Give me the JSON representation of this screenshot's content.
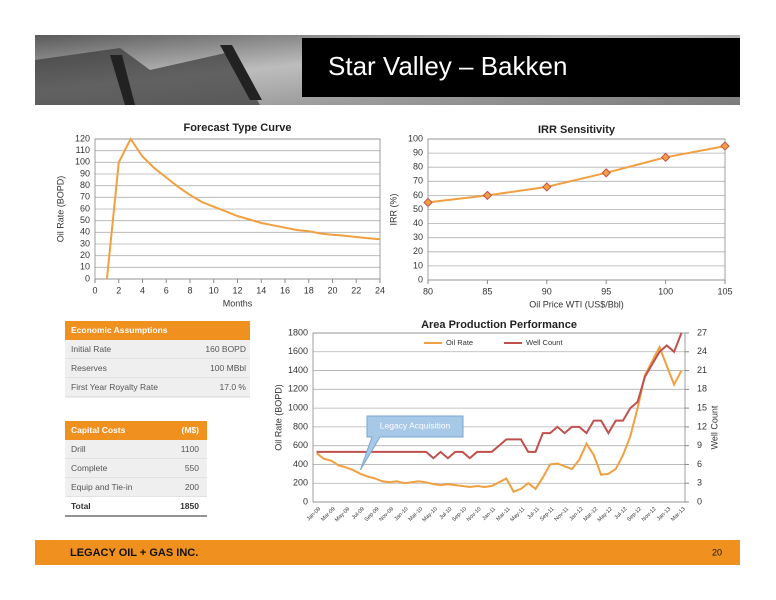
{
  "header": {
    "title": "Star Valley – Bakken"
  },
  "chart_data": [
    {
      "type": "line",
      "title": "Forecast Type Curve",
      "xlabel": "Months",
      "ylabel": "Oil Rate (BOPD)",
      "x": [
        1,
        2,
        3,
        4,
        5,
        6,
        7,
        8,
        9,
        10,
        11,
        12,
        13,
        14,
        15,
        16,
        17,
        18,
        19,
        20,
        21,
        22,
        23,
        24
      ],
      "values": [
        0,
        100,
        120,
        105,
        95,
        87,
        79,
        72,
        66,
        62,
        58,
        54,
        51,
        48,
        46,
        44,
        42,
        41,
        39,
        38,
        37,
        36,
        35,
        34
      ],
      "color": "#f0a040",
      "xlim": [
        0,
        24
      ],
      "xticks": [
        0,
        2,
        4,
        6,
        8,
        10,
        12,
        14,
        16,
        18,
        20,
        22,
        24
      ],
      "ylim": [
        0,
        120
      ],
      "yticks": [
        0,
        10,
        20,
        30,
        40,
        50,
        60,
        70,
        80,
        90,
        100,
        110,
        120
      ],
      "grid": true
    },
    {
      "type": "line",
      "title": "IRR Sensitivity",
      "xlabel": "Oil Price WTI (US$/Bbl)",
      "ylabel": "IRR (%)",
      "x": [
        80,
        85,
        90,
        95,
        100,
        105
      ],
      "values": [
        55,
        60,
        66,
        76,
        87,
        95
      ],
      "color": "#f0a040",
      "marker": "diamond",
      "marker_edge": "#c0504d",
      "xlim": [
        80,
        105
      ],
      "xticks": [
        80,
        85,
        90,
        95,
        100,
        105
      ],
      "ylim": [
        0,
        100
      ],
      "yticks": [
        0,
        10,
        20,
        30,
        40,
        50,
        60,
        70,
        80,
        90,
        100
      ],
      "grid": true
    },
    {
      "type": "line",
      "title": "Area Production Performance",
      "ylabel": "Oil Rate (BOPD)",
      "y2label": "Well Count",
      "annotation": "Legacy Acquisition",
      "legend": "top",
      "categories": [
        "Jan-09",
        null,
        "Mar-09",
        null,
        "May-09",
        null,
        "Jul-09",
        null,
        "Sep-09",
        null,
        "Nov-09",
        null,
        "Jan-10",
        null,
        "Mar-10",
        null,
        "May-10",
        null,
        "Jul-10",
        null,
        "Sep-10",
        null,
        "Nov-10",
        null,
        "Jan-11",
        null,
        "Mar-11",
        null,
        "May-11",
        null,
        "Jul-11",
        null,
        "Sep-11",
        null,
        "Nov-11",
        null,
        "Jan-12",
        null,
        "Mar-12",
        null,
        "May-12",
        null,
        "Jul-12",
        null,
        "Sep-12",
        null,
        "Nov-12",
        null,
        "Jan-13",
        null,
        "Mar-13"
      ],
      "series": [
        {
          "name": "Oil Rate",
          "color": "#f0a040",
          "values": [
            520,
            460,
            440,
            390,
            370,
            340,
            300,
            270,
            250,
            220,
            210,
            220,
            200,
            210,
            220,
            210,
            190,
            180,
            190,
            180,
            170,
            160,
            170,
            160,
            170,
            210,
            250,
            110,
            140,
            200,
            140,
            260,
            400,
            410,
            380,
            350,
            450,
            620,
            500,
            290,
            300,
            350,
            500,
            700,
            1000,
            1350,
            1500,
            1650,
            1450,
            1250,
            1400
          ]
        },
        {
          "name": "Well Count",
          "color": "#c0504d",
          "axis": "y2",
          "values": [
            8,
            8,
            8,
            8,
            8,
            8,
            8,
            8,
            8,
            8,
            8,
            8,
            8,
            8,
            8,
            8,
            7,
            8,
            7,
            8,
            8,
            7,
            8,
            8,
            8,
            9,
            10,
            10,
            10,
            8,
            8,
            11,
            11,
            12,
            11,
            12,
            12,
            11,
            13,
            13,
            11,
            13,
            13,
            15,
            16,
            20,
            22,
            24,
            25,
            24,
            27
          ]
        }
      ],
      "ylim": [
        0,
        1800
      ],
      "yticks": [
        0,
        200,
        400,
        600,
        800,
        1000,
        1200,
        1400,
        1600,
        1800
      ],
      "y2lim": [
        0,
        27
      ],
      "y2ticks": [
        0,
        3,
        6,
        9,
        12,
        15,
        18,
        21,
        24,
        27
      ],
      "grid": true
    }
  ],
  "economic_assumptions": {
    "header": "Economic Assumptions",
    "rows": [
      [
        "Initial Rate",
        "160 BOPD"
      ],
      [
        "Reserves",
        "100 MBbl"
      ],
      [
        "First Year Royalty Rate",
        "17.0 %"
      ]
    ]
  },
  "capital_costs": {
    "header": [
      "Capital Costs",
      "(M$)"
    ],
    "rows": [
      [
        "Drill",
        1100
      ],
      [
        "Complete",
        550
      ],
      [
        "Equip and Tie-in",
        200
      ],
      [
        "Total",
        1850
      ]
    ]
  },
  "footer": {
    "company": "LEGACY OIL + GAS INC.",
    "page": 20
  }
}
